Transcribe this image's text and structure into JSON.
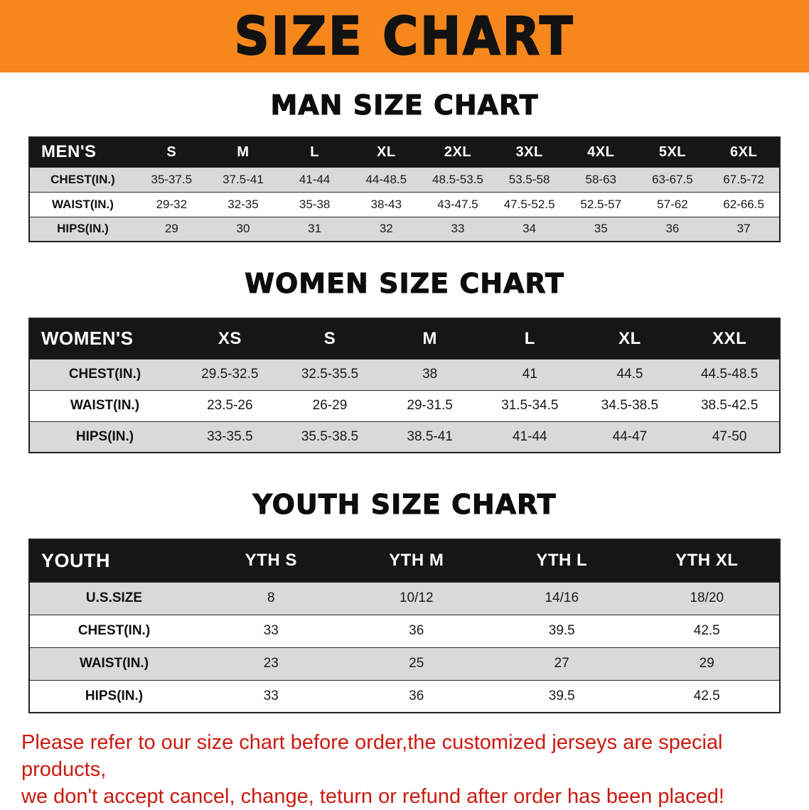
{
  "banner": {
    "title": "SIZE CHART"
  },
  "tables": [
    {
      "id": "men",
      "heading": "MAN SIZE CHART",
      "header": [
        "MEN'S",
        "S",
        "M",
        "L",
        "XL",
        "2XL",
        "3XL",
        "4XL",
        "5XL",
        "6XL"
      ],
      "rows": [
        [
          "CHEST(IN.)",
          "35-37.5",
          "37.5-41",
          "41-44",
          "44-48.5",
          "48.5-53.5",
          "53.5-58",
          "58-63",
          "63-67.5",
          "67.5-72"
        ],
        [
          "WAIST(IN.)",
          "29-32",
          "32-35",
          "35-38",
          "38-43",
          "43-47.5",
          "47.5-52.5",
          "52.5-57",
          "57-62",
          "62-66.5"
        ],
        [
          "HIPS(IN.)",
          "29",
          "30",
          "31",
          "32",
          "33",
          "34",
          "35",
          "36",
          "37"
        ]
      ]
    },
    {
      "id": "women",
      "heading": "WOMEN SIZE CHART",
      "header": [
        "WOMEN'S",
        "XS",
        "S",
        "M",
        "L",
        "XL",
        "XXL"
      ],
      "rows": [
        [
          "CHEST(IN.)",
          "29.5-32.5",
          "32.5-35.5",
          "38",
          "41",
          "44.5",
          "44.5-48.5"
        ],
        [
          "WAIST(IN.)",
          "23.5-26",
          "26-29",
          "29-31.5",
          "31.5-34.5",
          "34.5-38.5",
          "38.5-42.5"
        ],
        [
          "HIPS(IN.)",
          "33-35.5",
          "35.5-38.5",
          "38.5-41",
          "41-44",
          "44-47",
          "47-50"
        ]
      ]
    },
    {
      "id": "youth",
      "heading": "YOUTH SIZE CHART",
      "header": [
        "YOUTH",
        "YTH S",
        "YTH M",
        "YTH L",
        "YTH XL"
      ],
      "rows": [
        [
          "U.S.SIZE",
          "8",
          "10/12",
          "14/16",
          "18/20"
        ],
        [
          "CHEST(IN.)",
          "33",
          "36",
          "39.5",
          "42.5"
        ],
        [
          "WAIST(IN.)",
          "23",
          "25",
          "27",
          "29"
        ],
        [
          "HIPS(IN.)",
          "33",
          "36",
          "39.5",
          "42.5"
        ]
      ]
    }
  ],
  "footer": {
    "line1": "Please refer to our size chart before order,the customized jerseys are special products,",
    "line2": "we don't accept cancel, change, teturn or refund after order has been placed!"
  },
  "colors": {
    "banner_bg": "#f6871c",
    "table_header_bg": "#161616",
    "row_alt_bg": "#d9d9d9",
    "footer_text": "#cb1a10"
  }
}
